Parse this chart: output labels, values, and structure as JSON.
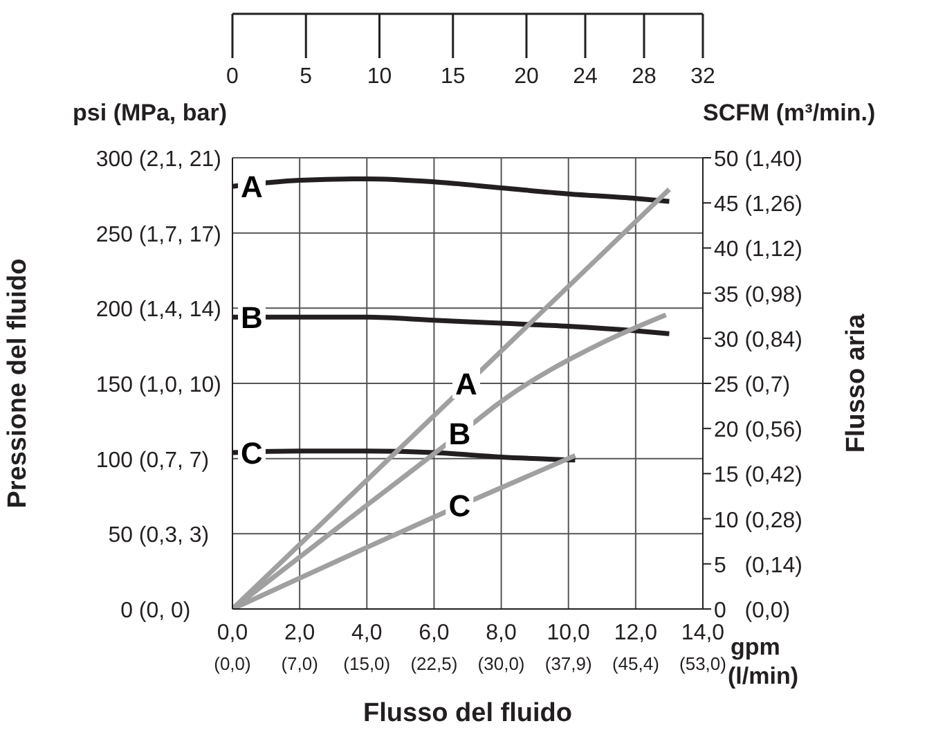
{
  "chart_data": {
    "type": "line",
    "xlabel": "Flusso del fluido",
    "ylabel": "Pressione del fluido",
    "y2label": "Flusso aria",
    "annotations": [
      "psi (MPa, bar)",
      "SCFM (m³/min.)",
      "gpm",
      "(l/min)",
      "(0, 0)",
      "(0,3, 3)",
      "(0,7, 7)",
      "(1,0, 10)",
      "(1,4, 14)",
      "(1,7, 17)",
      "(2,1, 21)",
      "(0,0)",
      "(0,14)",
      "(0,28)",
      "(0,42)",
      "(0,56)",
      "(0,7)",
      "(0,84)",
      "(0,98)",
      "(1,12)",
      "(1,26)",
      "(1,40)",
      "(0,0)",
      "(7,0)",
      "(15,0)",
      "(22,5)",
      "(30,0)",
      "(37,9)",
      "(45,4)",
      "(53,0)"
    ],
    "xlim": [
      0,
      14
    ],
    "xticks": [
      {
        "value": 0,
        "label": "0,0"
      },
      {
        "value": 2,
        "label": "2,0"
      },
      {
        "value": 4,
        "label": "4,0"
      },
      {
        "value": 6,
        "label": "6,0"
      },
      {
        "value": 8,
        "label": "8,0"
      },
      {
        "value": 10,
        "label": "10,0"
      },
      {
        "value": 12,
        "label": "12,0"
      },
      {
        "value": 14,
        "label": "14,0"
      }
    ],
    "x2lim": [
      0,
      32
    ],
    "x2ticks": [
      0,
      5,
      10,
      15,
      20,
      24,
      28,
      32
    ],
    "ylim": [
      0,
      300
    ],
    "yticks": [
      0,
      50,
      100,
      150,
      200,
      250,
      300
    ],
    "y2lim": [
      0,
      50
    ],
    "y2ticks": [
      0,
      5,
      10,
      15,
      20,
      25,
      30,
      35,
      40,
      45,
      50
    ],
    "grid": true,
    "legend": false,
    "marker": "none",
    "line_style": "solid",
    "series": [
      {
        "name": "A",
        "color": "#231f20",
        "x": [
          0,
          2,
          4,
          6,
          8,
          10,
          12,
          13
        ],
        "values": [
          281,
          285,
          286,
          284,
          280,
          276,
          273,
          271
        ]
      },
      {
        "name": "B",
        "color": "#231f20",
        "x": [
          0,
          2,
          4,
          6,
          8,
          10,
          12,
          13
        ],
        "values": [
          194,
          194,
          194,
          192,
          190,
          188,
          185,
          183
        ]
      },
      {
        "name": "C",
        "color": "#231f20",
        "x": [
          0,
          2,
          4,
          6,
          8,
          10.2
        ],
        "values": [
          104,
          105,
          105,
          104,
          101,
          99
        ]
      },
      {
        "name": "A",
        "color": "#a0a0a0",
        "axis": "y2",
        "x": [
          0,
          7,
          13
        ],
        "values": [
          0,
          25,
          46.5
        ]
      },
      {
        "name": "B",
        "color": "#a0a0a0",
        "axis": "y2",
        "x": [
          0,
          4,
          6.8,
          8,
          11,
          12.9
        ],
        "values": [
          0,
          11.5,
          19.5,
          23,
          29.5,
          32.6
        ]
      },
      {
        "name": "C",
        "color": "#a0a0a0",
        "axis": "y2",
        "x": [
          0,
          6.8,
          10.2
        ],
        "values": [
          0,
          11.5,
          17
        ]
      }
    ]
  }
}
